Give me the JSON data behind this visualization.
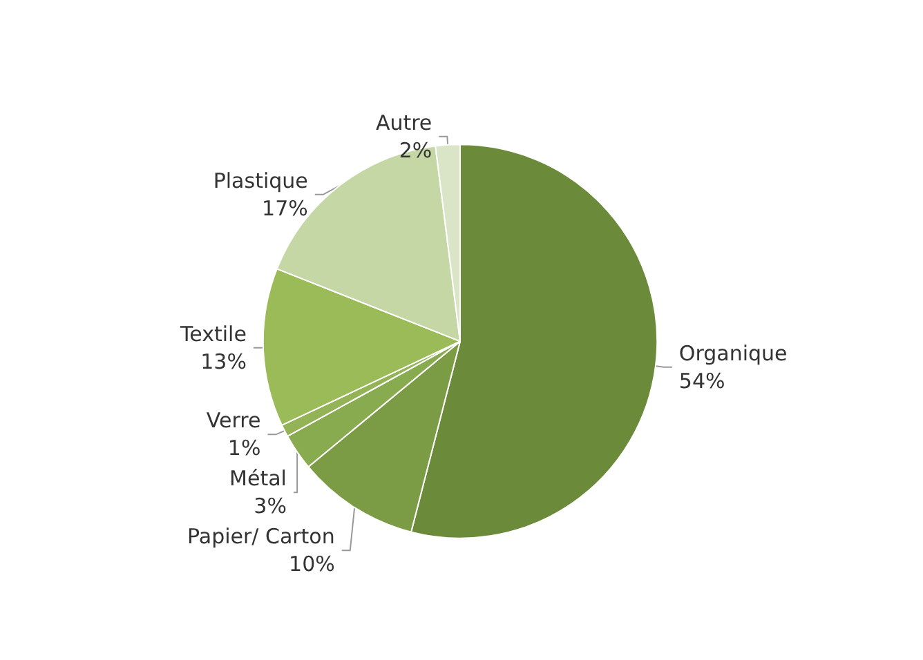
{
  "chart_data": {
    "type": "pie",
    "categories": [
      "Organique",
      "Papier/ Carton",
      "Métal",
      "Verre",
      "Textile",
      "Plastique",
      "Autre"
    ],
    "values": [
      54,
      10,
      3,
      1,
      13,
      17,
      2
    ],
    "colors": [
      "#6b8a3a",
      "#7b9c44",
      "#89ab4f",
      "#93b356",
      "#9bbb59",
      "#c4d7a4",
      "#d9e5c6"
    ],
    "value_labels": [
      "54%",
      "10%",
      "3%",
      "1%",
      "13%",
      "17%",
      "2%"
    ],
    "legend": false
  }
}
